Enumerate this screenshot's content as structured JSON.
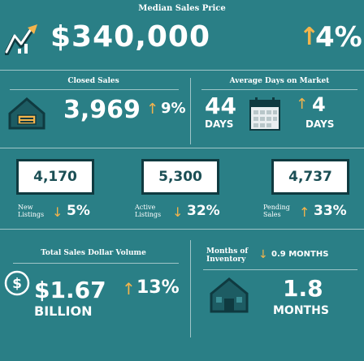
{
  "header": {
    "label": "Median Sales Price",
    "price": "$340,000",
    "change": "4%",
    "change_arrow": "↑"
  },
  "closed_sales": {
    "label": "Closed Sales",
    "value": "3,969",
    "change": "9%",
    "arrow": "↑"
  },
  "days_on_market": {
    "label": "Average Days on Market",
    "value": "44",
    "unit": "DAYS",
    "change": "4",
    "change_unit": "DAYS",
    "arrow": "↑"
  },
  "listings": [
    {
      "box": "4,170",
      "label_1": "New",
      "label_2": "Listings",
      "arrow": "↓",
      "change": "5%"
    },
    {
      "box": "5,300",
      "label_1": "Active",
      "label_2": "Listings",
      "arrow": "↓",
      "change": "32%"
    },
    {
      "box": "4,737",
      "label_1": "Pending",
      "label_2": "Sales",
      "arrow": "↑",
      "change": "33%"
    }
  ],
  "dollar_volume": {
    "label": "Total Sales Dollar Volume",
    "value": "$1.67",
    "unit": "BILLION",
    "change": "13%",
    "arrow": "↑"
  },
  "inventory": {
    "label_1": "Months of",
    "label_2": "Inventory",
    "change": "0.9 MONTHS",
    "arrow": "↓",
    "value": "1.8",
    "unit": "MONTHS"
  },
  "colors": {
    "background": "#2a7f86",
    "accent": "#f3b44c",
    "dark": "#0f3a40"
  },
  "icons": [
    "rising-graph-icon",
    "sold-house-icon",
    "calendar-icon",
    "dollar-coin-icon",
    "house-icon"
  ]
}
